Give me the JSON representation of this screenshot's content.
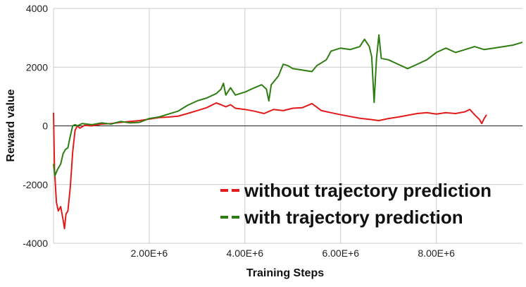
{
  "chart_data": {
    "type": "line",
    "xlabel": "Training Steps",
    "ylabel": "Reward value",
    "xlim": [
      0,
      9800000
    ],
    "ylim": [
      -4000,
      4000
    ],
    "x_ticks": [
      {
        "value": 2000000,
        "label": "2.00E+6"
      },
      {
        "value": 4000000,
        "label": "4.00E+6"
      },
      {
        "value": 6000000,
        "label": "6.00E+6"
      },
      {
        "value": 8000000,
        "label": "8.00E+6"
      }
    ],
    "y_ticks": [
      {
        "value": -4000,
        "label": "-4000"
      },
      {
        "value": -2000,
        "label": "-2000"
      },
      {
        "value": 0,
        "label": "0"
      },
      {
        "value": 2000,
        "label": "2000"
      },
      {
        "value": 4000,
        "label": "4000"
      }
    ],
    "grid": true,
    "legend_position": "bottom-right",
    "series": [
      {
        "name": "without trajectory prediction",
        "color": "#e31a1c",
        "points": [
          [
            0,
            450
          ],
          [
            20000,
            -1500
          ],
          [
            60000,
            -2600
          ],
          [
            100000,
            -2900
          ],
          [
            150000,
            -2750
          ],
          [
            200000,
            -3200
          ],
          [
            230000,
            -3500
          ],
          [
            260000,
            -3000
          ],
          [
            300000,
            -2900
          ],
          [
            350000,
            -2100
          ],
          [
            400000,
            -900
          ],
          [
            450000,
            -150
          ],
          [
            500000,
            0
          ],
          [
            550000,
            -80
          ],
          [
            650000,
            20
          ],
          [
            800000,
            0
          ],
          [
            1000000,
            60
          ],
          [
            1200000,
            80
          ],
          [
            1400000,
            120
          ],
          [
            1600000,
            150
          ],
          [
            1800000,
            180
          ],
          [
            2000000,
            230
          ],
          [
            2200000,
            280
          ],
          [
            2400000,
            300
          ],
          [
            2600000,
            330
          ],
          [
            2800000,
            420
          ],
          [
            3000000,
            520
          ],
          [
            3200000,
            620
          ],
          [
            3400000,
            780
          ],
          [
            3500000,
            720
          ],
          [
            3600000,
            650
          ],
          [
            3700000,
            720
          ],
          [
            3800000,
            600
          ],
          [
            4000000,
            560
          ],
          [
            4200000,
            500
          ],
          [
            4400000,
            420
          ],
          [
            4600000,
            560
          ],
          [
            4800000,
            520
          ],
          [
            5000000,
            600
          ],
          [
            5200000,
            620
          ],
          [
            5400000,
            760
          ],
          [
            5600000,
            520
          ],
          [
            5800000,
            450
          ],
          [
            6000000,
            380
          ],
          [
            6200000,
            320
          ],
          [
            6400000,
            260
          ],
          [
            6600000,
            220
          ],
          [
            6800000,
            180
          ],
          [
            7000000,
            250
          ],
          [
            7200000,
            300
          ],
          [
            7400000,
            360
          ],
          [
            7600000,
            420
          ],
          [
            7800000,
            450
          ],
          [
            8000000,
            400
          ],
          [
            8200000,
            450
          ],
          [
            8400000,
            420
          ],
          [
            8600000,
            480
          ],
          [
            8700000,
            560
          ],
          [
            8800000,
            380
          ],
          [
            8900000,
            220
          ],
          [
            8950000,
            80
          ],
          [
            9000000,
            250
          ],
          [
            9050000,
            380
          ]
        ]
      },
      {
        "name": "with trajectory prediction",
        "color": "#2e7d12",
        "points": [
          [
            0,
            -1300
          ],
          [
            30000,
            -1700
          ],
          [
            80000,
            -1500
          ],
          [
            150000,
            -1300
          ],
          [
            200000,
            -950
          ],
          [
            250000,
            -800
          ],
          [
            300000,
            -750
          ],
          [
            350000,
            -350
          ],
          [
            400000,
            0
          ],
          [
            450000,
            40
          ],
          [
            500000,
            0
          ],
          [
            600000,
            80
          ],
          [
            800000,
            40
          ],
          [
            1000000,
            100
          ],
          [
            1200000,
            60
          ],
          [
            1400000,
            150
          ],
          [
            1600000,
            100
          ],
          [
            1800000,
            120
          ],
          [
            2000000,
            250
          ],
          [
            2200000,
            300
          ],
          [
            2400000,
            400
          ],
          [
            2600000,
            500
          ],
          [
            2800000,
            700
          ],
          [
            3000000,
            850
          ],
          [
            3200000,
            950
          ],
          [
            3400000,
            1100
          ],
          [
            3500000,
            1250
          ],
          [
            3550000,
            1450
          ],
          [
            3600000,
            1050
          ],
          [
            3700000,
            1300
          ],
          [
            3800000,
            1050
          ],
          [
            4000000,
            1150
          ],
          [
            4200000,
            1300
          ],
          [
            4350000,
            1400
          ],
          [
            4450000,
            1250
          ],
          [
            4500000,
            850
          ],
          [
            4550000,
            1400
          ],
          [
            4600000,
            1500
          ],
          [
            4700000,
            1700
          ],
          [
            4800000,
            2100
          ],
          [
            4900000,
            2050
          ],
          [
            5000000,
            1950
          ],
          [
            5200000,
            1900
          ],
          [
            5400000,
            1850
          ],
          [
            5500000,
            2050
          ],
          [
            5700000,
            2250
          ],
          [
            5800000,
            2550
          ],
          [
            6000000,
            2650
          ],
          [
            6200000,
            2600
          ],
          [
            6400000,
            2700
          ],
          [
            6500000,
            2950
          ],
          [
            6600000,
            2700
          ],
          [
            6650000,
            2350
          ],
          [
            6700000,
            800
          ],
          [
            6750000,
            2300
          ],
          [
            6800000,
            3100
          ],
          [
            6850000,
            2300
          ],
          [
            7000000,
            2250
          ],
          [
            7200000,
            2100
          ],
          [
            7400000,
            1950
          ],
          [
            7600000,
            2100
          ],
          [
            7800000,
            2250
          ],
          [
            8000000,
            2500
          ],
          [
            8200000,
            2650
          ],
          [
            8400000,
            2500
          ],
          [
            8600000,
            2600
          ],
          [
            8800000,
            2700
          ],
          [
            9000000,
            2600
          ],
          [
            9200000,
            2650
          ],
          [
            9400000,
            2700
          ],
          [
            9600000,
            2750
          ],
          [
            9800000,
            2850
          ]
        ]
      }
    ]
  }
}
